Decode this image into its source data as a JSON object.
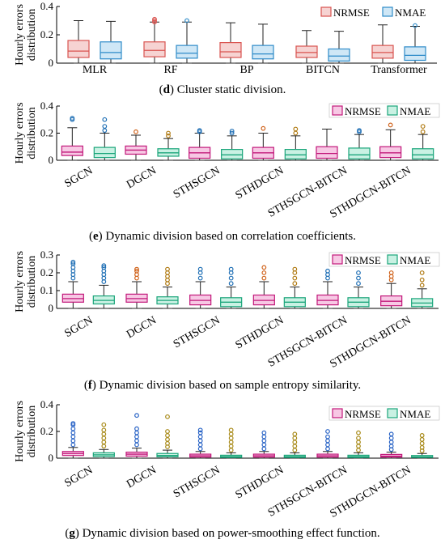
{
  "chart_data": [
    {
      "panel": "d",
      "type": "box",
      "caption_letter": "d",
      "caption_text": " Cluster static division.",
      "ylabel_lines": [
        "Hourly errors",
        "distribution"
      ],
      "ylim": [
        0,
        0.4
      ],
      "yticks": [
        "0",
        "0.2",
        "0.4"
      ],
      "categories": [
        "MLR",
        "RF",
        "BP",
        "BITCN",
        "Transformer"
      ],
      "rotate_labels": false,
      "legend": [
        "NRMSE",
        "NMAE"
      ],
      "series": [
        {
          "name": "NRMSE",
          "boxes": [
            {
              "min": 0.0,
              "q1": 0.04,
              "median": 0.085,
              "q3": 0.16,
              "max": 0.3,
              "outliers": []
            },
            {
              "min": 0.0,
              "q1": 0.045,
              "median": 0.09,
              "q3": 0.15,
              "max": 0.29,
              "outliers": [
                0.29,
                0.3,
                0.31
              ]
            },
            {
              "min": 0.0,
              "q1": 0.04,
              "median": 0.08,
              "q3": 0.145,
              "max": 0.285,
              "outliers": []
            },
            {
              "min": 0.0,
              "q1": 0.04,
              "median": 0.075,
              "q3": 0.12,
              "max": 0.23,
              "outliers": []
            },
            {
              "min": 0.0,
              "q1": 0.035,
              "median": 0.075,
              "q3": 0.125,
              "max": 0.27,
              "outliers": []
            }
          ]
        },
        {
          "name": "NMAE",
          "boxes": [
            {
              "min": 0.0,
              "q1": 0.03,
              "median": 0.075,
              "q3": 0.15,
              "max": 0.295,
              "outliers": []
            },
            {
              "min": 0.0,
              "q1": 0.035,
              "median": 0.07,
              "q3": 0.125,
              "max": 0.29,
              "outliers": [
                0.3
              ]
            },
            {
              "min": 0.0,
              "q1": 0.03,
              "median": 0.065,
              "q3": 0.125,
              "max": 0.275,
              "outliers": []
            },
            {
              "min": 0.0,
              "q1": 0.015,
              "median": 0.05,
              "q3": 0.1,
              "max": 0.225,
              "outliers": []
            },
            {
              "min": 0.0,
              "q1": 0.02,
              "median": 0.055,
              "q3": 0.115,
              "max": 0.26,
              "outliers": [
                0.265
              ]
            }
          ]
        }
      ]
    },
    {
      "panel": "e",
      "type": "box",
      "caption_letter": "e",
      "caption_text": " Dynamic division based on correlation coefficients.",
      "ylabel_lines": [
        "Hourly errors",
        "distribution"
      ],
      "ylim": [
        0,
        0.4
      ],
      "yticks": [
        "0",
        "0.2",
        "0.4"
      ],
      "categories": [
        "SGCN",
        "DGCN",
        "STHSGCN",
        "STHDGCN",
        "STHSGCN-BITCN",
        "STHDGCN-BITCN"
      ],
      "rotate_labels": true,
      "legend": [
        "NRMSE",
        "NMAE"
      ],
      "series": [
        {
          "name": "NRMSE",
          "boxes": [
            {
              "min": 0.0,
              "q1": 0.035,
              "median": 0.06,
              "q3": 0.105,
              "max": 0.24,
              "outliers": [
                0.3,
                0.31
              ]
            },
            {
              "min": 0.0,
              "q1": 0.045,
              "median": 0.075,
              "q3": 0.105,
              "max": 0.185,
              "outliers": [
                0.21
              ]
            },
            {
              "min": 0.0,
              "q1": 0.015,
              "median": 0.055,
              "q3": 0.095,
              "max": 0.2,
              "outliers": [
                0.21,
                0.22
              ]
            },
            {
              "min": 0.0,
              "q1": 0.015,
              "median": 0.055,
              "q3": 0.095,
              "max": 0.2,
              "outliers": [
                0.235
              ]
            },
            {
              "min": 0.0,
              "q1": 0.015,
              "median": 0.05,
              "q3": 0.1,
              "max": 0.23,
              "outliers": []
            },
            {
              "min": 0.0,
              "q1": 0.02,
              "median": 0.055,
              "q3": 0.1,
              "max": 0.225,
              "outliers": [
                0.26
              ]
            }
          ]
        },
        {
          "name": "NMAE",
          "boxes": [
            {
              "min": 0.0,
              "q1": 0.02,
              "median": 0.05,
              "q3": 0.095,
              "max": 0.2,
              "outliers": [
                0.22,
                0.25,
                0.3
              ]
            },
            {
              "min": 0.0,
              "q1": 0.03,
              "median": 0.055,
              "q3": 0.085,
              "max": 0.16,
              "outliers": [
                0.18,
                0.2
              ]
            },
            {
              "min": 0.0,
              "q1": 0.01,
              "median": 0.04,
              "q3": 0.08,
              "max": 0.18,
              "outliers": [
                0.2,
                0.215
              ]
            },
            {
              "min": 0.0,
              "q1": 0.01,
              "median": 0.04,
              "q3": 0.08,
              "max": 0.18,
              "outliers": [
                0.2,
                0.23
              ]
            },
            {
              "min": 0.0,
              "q1": 0.01,
              "median": 0.04,
              "q3": 0.09,
              "max": 0.19,
              "outliers": [
                0.21,
                0.22
              ]
            },
            {
              "min": 0.0,
              "q1": 0.01,
              "median": 0.04,
              "q3": 0.085,
              "max": 0.19,
              "outliers": [
                0.21,
                0.25
              ]
            }
          ]
        }
      ]
    },
    {
      "panel": "f",
      "type": "box",
      "caption_letter": "f",
      "caption_text": " Dynamic division based on sample entropy similarity.",
      "ylabel_lines": [
        "Hourly errors",
        "distribution"
      ],
      "ylim": [
        0,
        0.3
      ],
      "yticks": [
        "0",
        "0.1",
        "0.2",
        "0.3"
      ],
      "categories": [
        "SGCN",
        "DGCN",
        "STHSGCN",
        "STHDGCN",
        "STHSGCN-BITCN",
        "STHDGCN-BITCN"
      ],
      "rotate_labels": true,
      "legend": [
        "NRMSE",
        "NMAE"
      ],
      "series": [
        {
          "name": "NRMSE",
          "boxes": [
            {
              "min": 0.0,
              "q1": 0.035,
              "median": 0.055,
              "q3": 0.08,
              "max": 0.15,
              "outliers": [
                0.17,
                0.19,
                0.21,
                0.23,
                0.25,
                0.26
              ]
            },
            {
              "min": 0.0,
              "q1": 0.035,
              "median": 0.055,
              "q3": 0.08,
              "max": 0.15,
              "outliers": [
                0.17,
                0.19,
                0.21,
                0.22
              ]
            },
            {
              "min": 0.0,
              "q1": 0.02,
              "median": 0.045,
              "q3": 0.075,
              "max": 0.15,
              "outliers": [
                0.17,
                0.2,
                0.22
              ]
            },
            {
              "min": 0.0,
              "q1": 0.02,
              "median": 0.045,
              "q3": 0.075,
              "max": 0.15,
              "outliers": [
                0.17,
                0.2,
                0.23
              ]
            },
            {
              "min": 0.0,
              "q1": 0.02,
              "median": 0.045,
              "q3": 0.075,
              "max": 0.15,
              "outliers": [
                0.17,
                0.19,
                0.21
              ]
            },
            {
              "min": 0.0,
              "q1": 0.015,
              "median": 0.04,
              "q3": 0.07,
              "max": 0.14,
              "outliers": [
                0.16,
                0.18,
                0.2
              ]
            }
          ]
        },
        {
          "name": "NMAE",
          "boxes": [
            {
              "min": 0.0,
              "q1": 0.025,
              "median": 0.045,
              "q3": 0.07,
              "max": 0.13,
              "outliers": [
                0.15,
                0.17,
                0.19,
                0.21,
                0.23,
                0.24
              ]
            },
            {
              "min": 0.0,
              "q1": 0.025,
              "median": 0.045,
              "q3": 0.065,
              "max": 0.12,
              "outliers": [
                0.14,
                0.16,
                0.18,
                0.2,
                0.22
              ]
            },
            {
              "min": 0.0,
              "q1": 0.01,
              "median": 0.035,
              "q3": 0.06,
              "max": 0.12,
              "outliers": [
                0.14,
                0.17,
                0.2,
                0.22
              ]
            },
            {
              "min": 0.0,
              "q1": 0.01,
              "median": 0.035,
              "q3": 0.06,
              "max": 0.12,
              "outliers": [
                0.14,
                0.17,
                0.2,
                0.22
              ]
            },
            {
              "min": 0.0,
              "q1": 0.01,
              "median": 0.035,
              "q3": 0.06,
              "max": 0.12,
              "outliers": [
                0.14,
                0.17,
                0.2
              ]
            },
            {
              "min": 0.0,
              "q1": 0.01,
              "median": 0.03,
              "q3": 0.055,
              "max": 0.11,
              "outliers": [
                0.13,
                0.16,
                0.2
              ]
            }
          ]
        }
      ]
    },
    {
      "panel": "g",
      "type": "box",
      "caption_letter": "g",
      "caption_text": " Dynamic division based on power-smoothing effect function.",
      "ylabel_lines": [
        "Hourly errors",
        "distribution"
      ],
      "ylim": [
        0,
        0.4
      ],
      "yticks": [
        "0",
        "0.2",
        "0.4"
      ],
      "categories": [
        "SGCN",
        "DGCN",
        "STHSGCN",
        "STHDGCN",
        "STHSGCN-BITCN",
        "STHDGCN-BITCN"
      ],
      "rotate_labels": true,
      "legend": [
        "NRMSE",
        "NMAE"
      ],
      "series": [
        {
          "name": "NRMSE",
          "boxes": [
            {
              "min": 0.0,
              "q1": 0.02,
              "median": 0.035,
              "q3": 0.05,
              "max": 0.08,
              "outliers": [
                0.1,
                0.13,
                0.16,
                0.19,
                0.22,
                0.25,
                0.26
              ]
            },
            {
              "min": 0.0,
              "q1": 0.015,
              "median": 0.03,
              "q3": 0.045,
              "max": 0.075,
              "outliers": [
                0.1,
                0.13,
                0.16,
                0.19,
                0.22,
                0.32
              ]
            },
            {
              "min": 0.0,
              "q1": 0.008,
              "median": 0.018,
              "q3": 0.03,
              "max": 0.05,
              "outliers": [
                0.07,
                0.1,
                0.13,
                0.16,
                0.19,
                0.21
              ]
            },
            {
              "min": 0.0,
              "q1": 0.008,
              "median": 0.018,
              "q3": 0.03,
              "max": 0.05,
              "outliers": [
                0.07,
                0.1,
                0.13,
                0.16,
                0.19
              ]
            },
            {
              "min": 0.0,
              "q1": 0.008,
              "median": 0.018,
              "q3": 0.03,
              "max": 0.05,
              "outliers": [
                0.07,
                0.1,
                0.13,
                0.16,
                0.2
              ]
            },
            {
              "min": 0.0,
              "q1": 0.008,
              "median": 0.015,
              "q3": 0.028,
              "max": 0.045,
              "outliers": [
                0.065,
                0.09,
                0.12,
                0.15,
                0.18
              ]
            }
          ]
        },
        {
          "name": "NMAE",
          "boxes": [
            {
              "min": 0.0,
              "q1": 0.012,
              "median": 0.025,
              "q3": 0.04,
              "max": 0.065,
              "outliers": [
                0.09,
                0.12,
                0.15,
                0.18,
                0.21,
                0.25
              ]
            },
            {
              "min": 0.0,
              "q1": 0.01,
              "median": 0.02,
              "q3": 0.035,
              "max": 0.06,
              "outliers": [
                0.085,
                0.11,
                0.14,
                0.17,
                0.2,
                0.31
              ]
            },
            {
              "min": 0.0,
              "q1": 0.005,
              "median": 0.012,
              "q3": 0.022,
              "max": 0.04,
              "outliers": [
                0.06,
                0.09,
                0.12,
                0.15,
                0.18,
                0.21
              ]
            },
            {
              "min": 0.0,
              "q1": 0.005,
              "median": 0.012,
              "q3": 0.022,
              "max": 0.04,
              "outliers": [
                0.06,
                0.09,
                0.12,
                0.15,
                0.18
              ]
            },
            {
              "min": 0.0,
              "q1": 0.005,
              "median": 0.012,
              "q3": 0.022,
              "max": 0.04,
              "outliers": [
                0.06,
                0.09,
                0.12,
                0.15,
                0.19
              ]
            },
            {
              "min": 0.0,
              "q1": 0.005,
              "median": 0.01,
              "q3": 0.02,
              "max": 0.035,
              "outliers": [
                0.055,
                0.08,
                0.11,
                0.14,
                0.17
              ]
            }
          ]
        }
      ]
    }
  ],
  "colors": {
    "d": {
      "NRMSE": {
        "stroke": "#d9534f",
        "fill": "#f6d3d2",
        "outlier": "#d9534f"
      },
      "NMAE": {
        "stroke": "#2e8bc9",
        "fill": "#cfe7f6",
        "outlier": "#2e8bc9"
      }
    },
    "efg": {
      "NRMSE": {
        "stroke": "#c2187a",
        "fill": "#f7c8e4",
        "outlier_a": "#1f6fb5",
        "outlier_b": "#d0621a"
      },
      "NMAE": {
        "stroke": "#1aa57a",
        "fill": "#c9f1e3",
        "outlier_a": "#1f6fb5",
        "outlier_b": "#b07a12"
      },
      "g_outlier_nrmse": "#2a64c6",
      "g_outlier_nmae": "#a88a18"
    }
  }
}
